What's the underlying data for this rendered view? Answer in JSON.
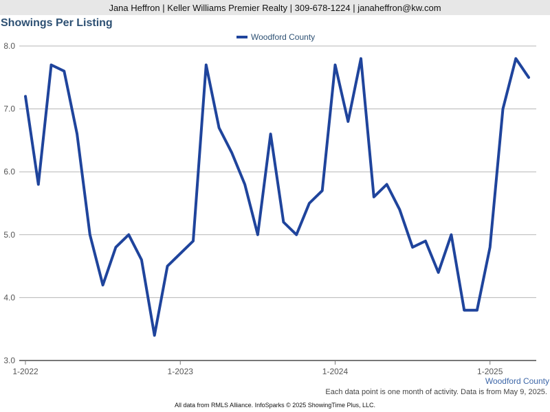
{
  "header": {
    "contact": "Jana Heffron | Keller Williams Premier Realty | 309-678-1224 | janaheffron@kw.com"
  },
  "chart_data": {
    "type": "line",
    "title": "Showings Per Listing",
    "xlabel": "",
    "ylabel": "",
    "ylim": [
      3.0,
      8.0
    ],
    "yticks": [
      "3.0",
      "4.0",
      "5.0",
      "6.0",
      "7.0",
      "8.0"
    ],
    "xtick_labels": [
      "1-2022",
      "1-2023",
      "1-2024",
      "1-2025"
    ],
    "grid": true,
    "legend_position": "top-center",
    "series": [
      {
        "name": "Woodford County",
        "color": "#1f449c",
        "x": [
          "2022-01",
          "2022-02",
          "2022-03",
          "2022-04",
          "2022-05",
          "2022-06",
          "2022-07",
          "2022-08",
          "2022-09",
          "2022-10",
          "2022-11",
          "2022-12",
          "2023-01",
          "2023-02",
          "2023-03",
          "2023-04",
          "2023-05",
          "2023-06",
          "2023-07",
          "2023-08",
          "2023-09",
          "2023-10",
          "2023-11",
          "2023-12",
          "2024-01",
          "2024-02",
          "2024-03",
          "2024-04",
          "2024-05",
          "2024-06",
          "2024-07",
          "2024-08",
          "2024-09",
          "2024-10",
          "2024-11",
          "2024-12",
          "2025-01",
          "2025-02",
          "2025-03",
          "2025-04"
        ],
        "values": [
          7.2,
          5.8,
          7.7,
          7.6,
          6.6,
          5.0,
          4.2,
          4.8,
          5.0,
          4.6,
          3.4,
          4.5,
          4.7,
          4.9,
          7.7,
          6.7,
          6.3,
          5.8,
          5.0,
          6.6,
          5.2,
          5.0,
          5.5,
          5.7,
          7.7,
          6.8,
          7.8,
          5.6,
          5.8,
          5.4,
          4.8,
          4.9,
          4.4,
          5.0,
          3.8,
          3.8,
          4.8,
          7.0,
          7.8,
          7.5
        ]
      }
    ],
    "end_label": "Woodford County"
  },
  "notes": {
    "footnote": "Each data point is one month of activity. Data is from May 9, 2025.",
    "footer": "All data from RMLS Alliance. InfoSparks © 2025 ShowingTime Plus, LLC."
  }
}
